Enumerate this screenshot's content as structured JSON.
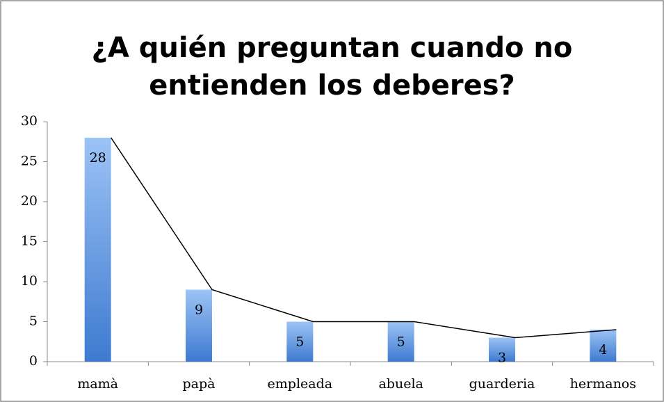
{
  "chart_data": {
    "type": "bar",
    "title": "¿A quién preguntan cuando no entienden los deberes?",
    "categories": [
      "mamà",
      "papà",
      "empleada",
      "abuela",
      "guarderia",
      "hermanos"
    ],
    "values": [
      28,
      9,
      5,
      5,
      3,
      4
    ],
    "color": "#4a86d8",
    "ylim": [
      0,
      30
    ],
    "yticks": [
      0,
      5,
      10,
      15,
      20,
      25,
      30
    ],
    "grid": false,
    "data_labels": true,
    "trend_line": true
  }
}
